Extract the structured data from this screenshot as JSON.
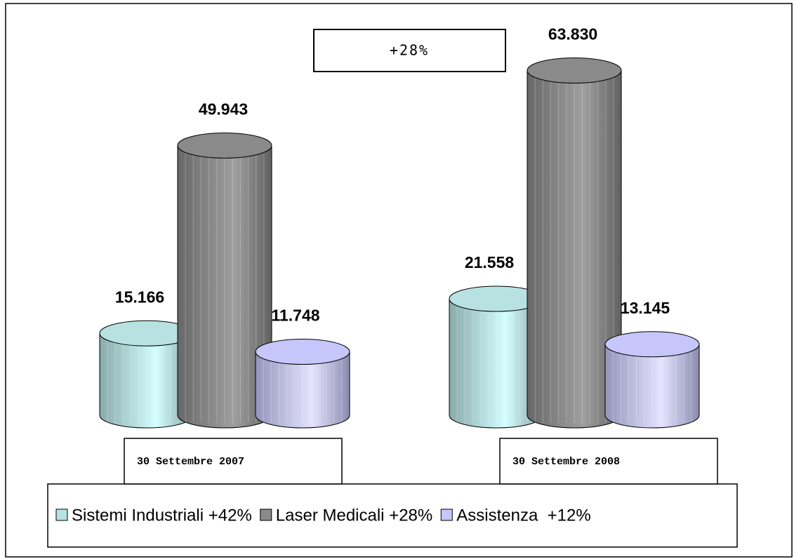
{
  "chart_data": {
    "type": "bar3d",
    "annotation": "+28%",
    "categories": [
      "30 Settembre 2007",
      "30 Settembre  2008"
    ],
    "series": [
      {
        "name": "Sistemi Industriali +42%",
        "color": "#b8e2e2",
        "values": [
          15166,
          21558
        ],
        "value_labels": [
          "15.166",
          "21.558"
        ]
      },
      {
        "name": "Laser Medicali +28%",
        "color": "#8a8a8a",
        "values": [
          49943,
          63830
        ],
        "value_labels": [
          "49.943",
          "63.830"
        ]
      },
      {
        "name": "Assistenza  +12%",
        "color": "#c6c6fa",
        "values": [
          11748,
          13145
        ],
        "value_labels": [
          "11.748",
          "13.145"
        ]
      }
    ]
  }
}
